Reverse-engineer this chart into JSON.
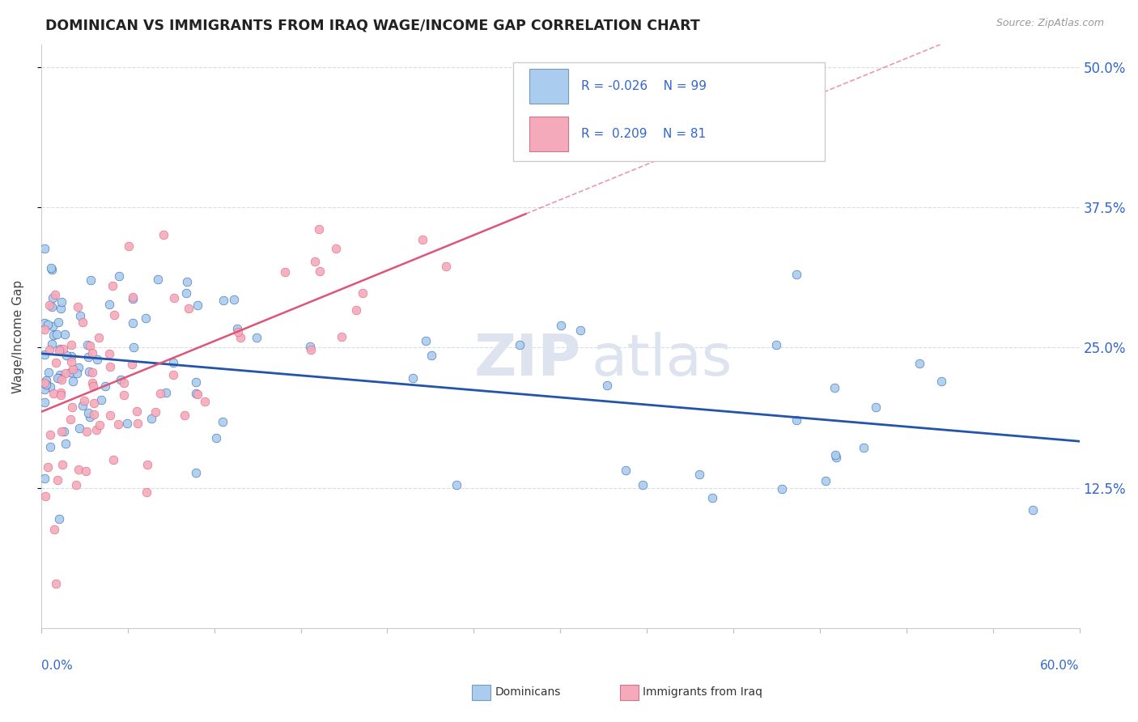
{
  "title": "DOMINICAN VS IMMIGRANTS FROM IRAQ WAGE/INCOME GAP CORRELATION CHART",
  "source_text": "Source: ZipAtlas.com",
  "ylabel": "Wage/Income Gap",
  "xlim": [
    0.0,
    0.6
  ],
  "ylim": [
    0.0,
    0.52
  ],
  "dominicans_color": "#aaccee",
  "iraq_color": "#f4aabb",
  "trend_dom_color": "#2255aa",
  "trend_iraq_color": "#dd5577",
  "grid_color": "#d8dce8",
  "dashed_color": "#c8ccd8",
  "watermark_color": "#dde4f0"
}
